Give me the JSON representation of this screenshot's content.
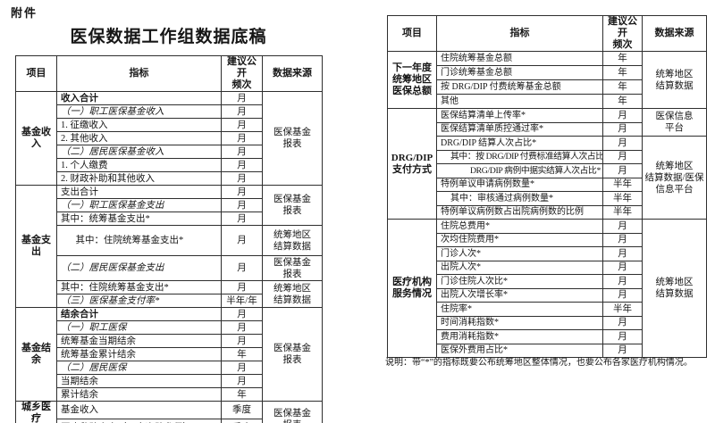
{
  "page": {
    "attachment_label": "附件",
    "title": "医保数据工作组数据底稿",
    "footnote": "说明：带“*”的指标既要公布统筹地区整体情况，也要公布各家医疗机构情况。"
  },
  "tables": [
    {
      "name": "left-table",
      "header": [
        "项目",
        "指标",
        "建议公开\n频次",
        "数据来源"
      ],
      "sections": [
        {
          "project": "基金收入",
          "rows": [
            {
              "indicator": "收入合计",
              "freq": "月",
              "style": "bold"
            },
            {
              "indicator": "（一）职工医保基金收入",
              "freq": "月",
              "style": "kai"
            },
            {
              "indicator": "1. 征缴收入",
              "freq": "月"
            },
            {
              "indicator": "2. 其他收入",
              "freq": "月"
            },
            {
              "indicator": "（二）居民医保基金收入",
              "freq": "月",
              "style": "kai"
            },
            {
              "indicator": "1. 个人缴费",
              "freq": "月"
            },
            {
              "indicator": "2. 财政补助和其他收入",
              "freq": "月"
            }
          ],
          "sources": [
            {
              "text": "医保基金\n报表",
              "span": 7
            }
          ]
        },
        {
          "project": "基金支出",
          "rows": [
            {
              "indicator": "支出合计",
              "freq": "月"
            },
            {
              "indicator": "（一）职工医保基金支出",
              "freq": "月",
              "style": "kai"
            },
            {
              "indicator": "其中：统筹基金支出*",
              "freq": "月"
            },
            {
              "indicator": "其中：住院统筹基金支出*",
              "freq": "月",
              "indent": 1.5,
              "height": 34
            },
            {
              "indicator": "（二）居民医保基金支出",
              "freq": "月",
              "style": "kai",
              "height": 28
            },
            {
              "indicator": "其中：住院统筹基金支出*",
              "freq": "月"
            },
            {
              "indicator": "（三）医保基金支付率*",
              "freq": "半年/年",
              "style": "kai"
            }
          ],
          "sources": [
            {
              "text": "医保基金\n报表",
              "span": 3
            },
            {
              "text": "统筹地区\n结算数据",
              "span": 1
            },
            {
              "text": "医保基金\n报表",
              "span": 1
            },
            {
              "text": "统筹地区\n结算数据",
              "span": 2
            }
          ]
        },
        {
          "project": "基金结余",
          "rows": [
            {
              "indicator": "结余合计",
              "freq": "月",
              "style": "bold"
            },
            {
              "indicator": "（一）职工医保",
              "freq": "月",
              "style": "kai"
            },
            {
              "indicator": "统筹基金当期结余",
              "freq": "月"
            },
            {
              "indicator": "统筹基金累计结余",
              "freq": "年"
            },
            {
              "indicator": "（二）居民医保",
              "freq": "月",
              "style": "kai"
            },
            {
              "indicator": "当期结余",
              "freq": "月"
            },
            {
              "indicator": "累计结余",
              "freq": "年"
            }
          ],
          "sources": [
            {
              "text": "医保基金\n报表",
              "span": 7
            }
          ]
        },
        {
          "project": "城乡医疗\n救助",
          "rows": [
            {
              "indicator": "基金收入",
              "freq": "季度"
            },
            {
              "indicator": "医疗救助支出（不含资助参保）",
              "freq": "季度"
            }
          ],
          "sources": [
            {
              "text": "医保基金\n报表",
              "span": 2
            }
          ]
        }
      ]
    },
    {
      "name": "right-table",
      "header": [
        "项目",
        "指标",
        "建议公开\n频次",
        "数据来源"
      ],
      "sections": [
        {
          "project": "下一年度\n统筹地区\n医保总额",
          "rows": [
            {
              "indicator": "住院统筹基金总额",
              "freq": "年",
              "height": 16
            },
            {
              "indicator": "门诊统筹基金总额",
              "freq": "年",
              "height": 16
            },
            {
              "indicator": "按 DRG/DIP 付费统筹基金总额",
              "freq": "年",
              "height": 16
            },
            {
              "indicator": "其他",
              "freq": "年",
              "height": 16
            }
          ],
          "sources": [
            {
              "text": "统筹地区\n结算数据",
              "span": 4
            }
          ]
        },
        {
          "project": "DRG/DIP\n支付方式",
          "rows": [
            {
              "indicator": "医保结算清单上传率*",
              "freq": "月"
            },
            {
              "indicator": "医保结算清单质控通过率*",
              "freq": "月"
            },
            {
              "indicator": "DRG/DIP 结算人次占比*",
              "freq": "月"
            },
            {
              "indicator": "其中：按 DRG/DIP 付费标准结算人次占比*",
              "freq": "月",
              "indent": 1,
              "style": "tight"
            },
            {
              "indicator": "DRG/DIP 病例中据实结算人次占比*",
              "freq": "月",
              "indent": 3,
              "style": "tight"
            },
            {
              "indicator": "特例单议申请病例数量*",
              "freq": "半年"
            },
            {
              "indicator": "其中：审核通过病例数量*",
              "freq": "半年",
              "indent": 1
            },
            {
              "indicator": "特例单议病例数占出院病例数的比例",
              "freq": "半年"
            }
          ],
          "sources": [
            {
              "text": "医保信息\n平台",
              "span": 2
            },
            {
              "text": "统筹地区\n结算数据/医保\n信息平台",
              "span": 6
            }
          ]
        },
        {
          "project": "医疗机构\n服务情况",
          "rows": [
            {
              "indicator": "住院总费用*",
              "freq": "月"
            },
            {
              "indicator": "次均住院费用*",
              "freq": "月"
            },
            {
              "indicator": "门诊人次*",
              "freq": "月"
            },
            {
              "indicator": "出院人次*",
              "freq": "月"
            },
            {
              "indicator": "门诊住院人次比*",
              "freq": "月"
            },
            {
              "indicator": "出院人次增长率*",
              "freq": "月"
            },
            {
              "indicator": "住院率*",
              "freq": "半年"
            },
            {
              "indicator": "时间消耗指数*",
              "freq": "月"
            },
            {
              "indicator": "费用消耗指数*",
              "freq": "月"
            },
            {
              "indicator": "医保外费用占比*",
              "freq": "月"
            }
          ],
          "sources": [
            {
              "text": "统筹地区\n结算数据",
              "span": 10
            }
          ]
        }
      ]
    }
  ]
}
